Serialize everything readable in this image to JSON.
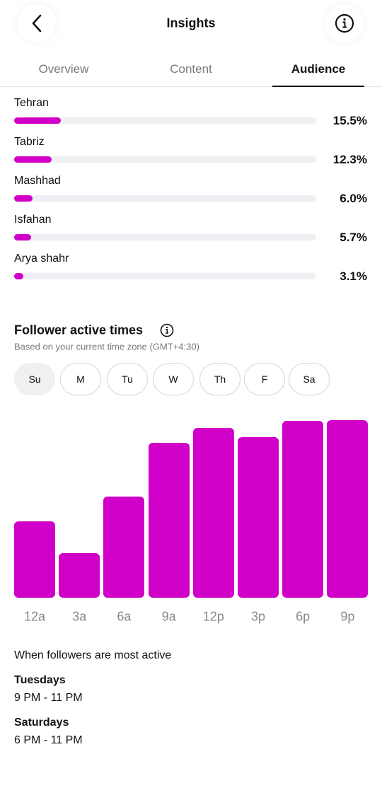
{
  "header": {
    "title": "Insights"
  },
  "tabs": [
    "Overview",
    "Content",
    "Audience"
  ],
  "active_tab": 2,
  "chart_data": [
    {
      "type": "hbar",
      "categories": [
        "Tehran",
        "Tabriz",
        "Mashhad",
        "Isfahan",
        "Arya shahr"
      ],
      "values": [
        15.5,
        12.3,
        6.0,
        5.7,
        3.1
      ],
      "value_labels": [
        "15.5%",
        "12.3%",
        "6.0%",
        "5.7%",
        "3.1%"
      ],
      "xlim": [
        0,
        100
      ],
      "color": "#d000c8",
      "track_color": "#f0f0f4"
    },
    {
      "type": "bar",
      "title": "Follower active times",
      "subtitle": "Based on your current time zone (GMT+4:30)",
      "categories": [
        "12a",
        "3a",
        "6a",
        "9a",
        "12p",
        "3p",
        "6p",
        "9p"
      ],
      "values": [
        108,
        63,
        143,
        219,
        240,
        227,
        250,
        251
      ],
      "ylim": [
        0,
        255
      ],
      "color": "#d000c8"
    }
  ],
  "days": [
    "Su",
    "M",
    "Tu",
    "W",
    "Th",
    "F",
    "Sa"
  ],
  "active_day": 0,
  "most_active": {
    "title": "When followers are most active",
    "items": [
      {
        "day": "Tuesdays",
        "time": "9 PM - 11 PM"
      },
      {
        "day": "Saturdays",
        "time": "6 PM - 11 PM"
      }
    ]
  }
}
